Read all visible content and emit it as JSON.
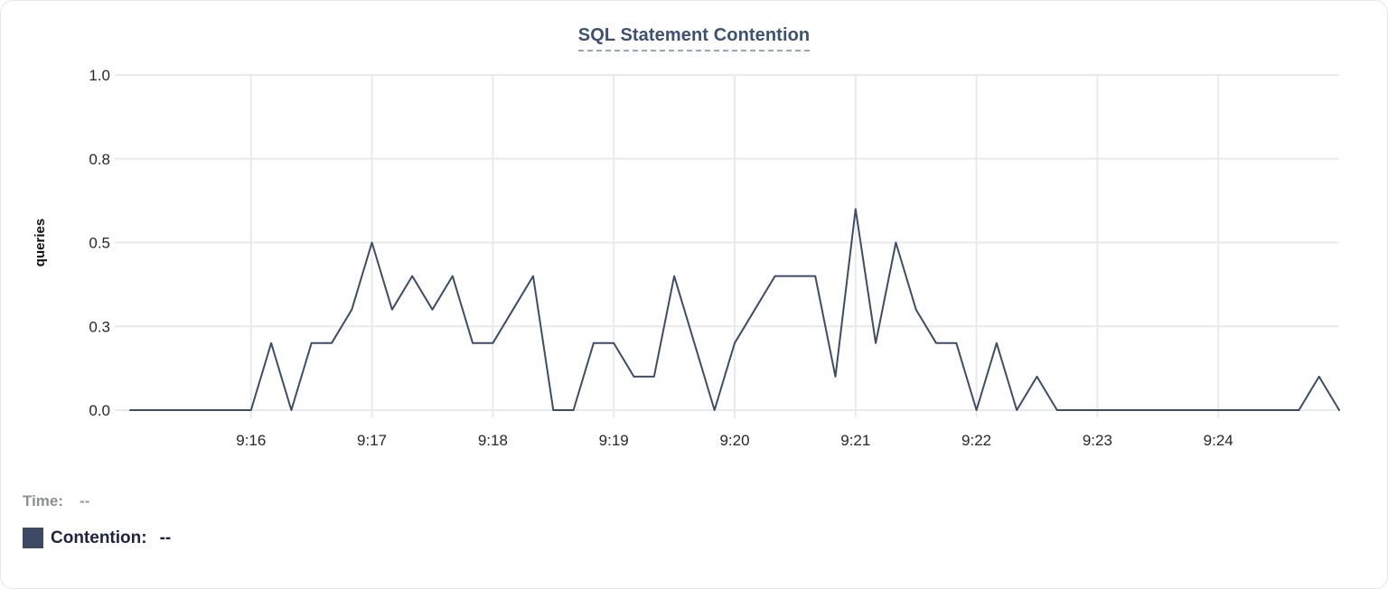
{
  "chart": {
    "title": "SQL Statement Contention"
  },
  "legend": {
    "time_label": "Time:",
    "time_value": "--",
    "contention_label": "Contention:",
    "contention_value": "--",
    "swatch_color": "#3e4a63"
  },
  "chart_data": {
    "type": "line",
    "title": "SQL Statement Contention",
    "xlabel": "",
    "ylabel": "queries",
    "ylim": [
      0,
      1
    ],
    "grid": true,
    "legend_position": "bottom-left",
    "x_start": "9:15:00",
    "x_end": "9:25:00",
    "point_interval_seconds": 10,
    "x_tick_labels": [
      "9:16",
      "9:17",
      "9:18",
      "9:19",
      "9:20",
      "9:21",
      "9:22",
      "9:23",
      "9:24"
    ],
    "y_ticks": [
      {
        "value": 0.0,
        "label": "0.0"
      },
      {
        "value": 0.25,
        "label": "0.3"
      },
      {
        "value": 0.5,
        "label": "0.5"
      },
      {
        "value": 0.75,
        "label": "0.8"
      },
      {
        "value": 1.0,
        "label": "1.0"
      }
    ],
    "series": [
      {
        "name": "Contention",
        "color": "#3d4c68",
        "values": [
          0,
          0,
          0,
          0,
          0,
          0,
          0,
          0.2,
          0,
          0.2,
          0.2,
          0.3,
          0.5,
          0.3,
          0.4,
          0.3,
          0.4,
          0.2,
          0.2,
          0.3,
          0.4,
          0,
          0,
          0.2,
          0.2,
          0.1,
          0.1,
          0.4,
          0.2,
          0,
          0.2,
          0.3,
          0.4,
          0.4,
          0.4,
          0.1,
          0.6,
          0.2,
          0.5,
          0.3,
          0.2,
          0.2,
          0,
          0.2,
          0,
          0.1,
          0,
          0,
          0,
          0,
          0,
          0,
          0,
          0,
          0,
          0,
          0,
          0,
          0,
          0.1,
          0
        ]
      }
    ],
    "style": {
      "gridline_color": "#e9eaeb",
      "tick_label_color": "#27282b",
      "axis_title_color": "#0f1012",
      "title_color": "#3d5173"
    }
  }
}
